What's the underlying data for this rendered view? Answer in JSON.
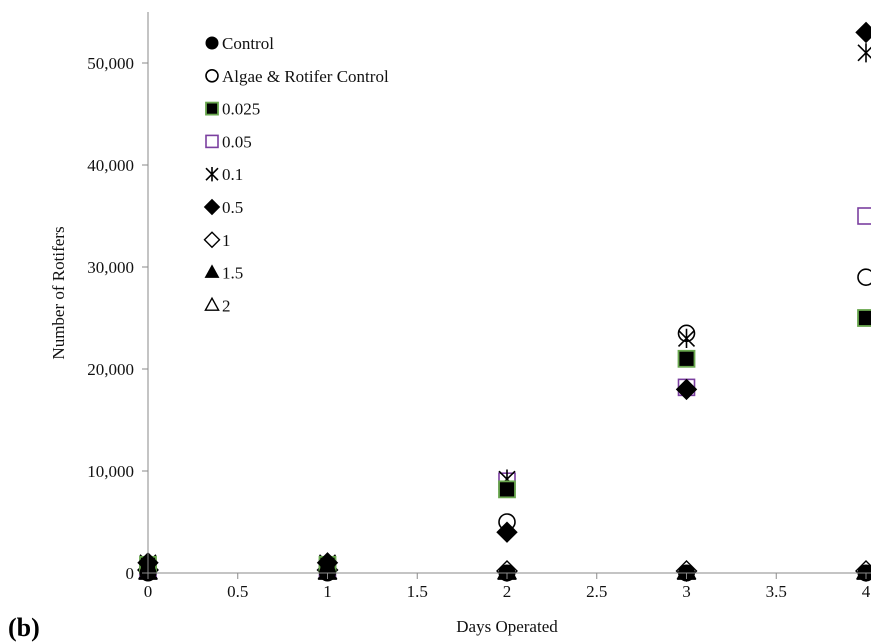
{
  "panel_label": "(b)",
  "chart_data": {
    "type": "scatter",
    "title": "",
    "xlabel": "Days Operated",
    "ylabel": "Number of Rotifers",
    "xlim": [
      0,
      4
    ],
    "ylim": [
      0,
      55000
    ],
    "x_ticks": [
      0,
      0.5,
      1,
      1.5,
      2,
      2.5,
      3,
      3.5,
      4
    ],
    "x_tick_labels": [
      "0",
      "0.5",
      "1",
      "1.5",
      "2",
      "2.5",
      "3",
      "3.5",
      "4"
    ],
    "y_ticks": [
      0,
      10000,
      20000,
      30000,
      40000,
      50000
    ],
    "y_tick_labels": [
      "0",
      "10,000",
      "20,000",
      "30,000",
      "40,000",
      "50,000"
    ],
    "grid": false,
    "legend_position": "top-left",
    "series": [
      {
        "name": "Control",
        "marker": "filled-circle",
        "color": "#000000",
        "points": [
          [
            0,
            0
          ],
          [
            1,
            0
          ],
          [
            2,
            0
          ],
          [
            3,
            0
          ],
          [
            4,
            0
          ]
        ]
      },
      {
        "name": "Algae & Rotifer Control",
        "marker": "open-circle",
        "color": "#000000",
        "points": [
          [
            0,
            500
          ],
          [
            1,
            500
          ],
          [
            2,
            5000
          ],
          [
            3,
            23500
          ],
          [
            4,
            29000
          ]
        ]
      },
      {
        "name": "0.025",
        "marker": "filled-square",
        "color": "#000000",
        "edge": "#6aa84f",
        "points": [
          [
            0,
            800
          ],
          [
            1,
            800
          ],
          [
            2,
            8200
          ],
          [
            3,
            21000
          ],
          [
            4,
            25000
          ]
        ]
      },
      {
        "name": "0.05",
        "marker": "open-square",
        "color": "#7b3fa0",
        "points": [
          [
            0,
            500
          ],
          [
            1,
            500
          ],
          [
            2,
            9000
          ],
          [
            3,
            18200
          ],
          [
            4,
            35000
          ]
        ]
      },
      {
        "name": "0.1",
        "marker": "asterisk",
        "color": "#000000",
        "points": [
          [
            0,
            1000
          ],
          [
            1,
            1000
          ],
          [
            2,
            9200
          ],
          [
            3,
            23000
          ],
          [
            4,
            51000
          ]
        ]
      },
      {
        "name": "0.5",
        "marker": "filled-diamond",
        "color": "#000000",
        "points": [
          [
            0,
            1000
          ],
          [
            1,
            1000
          ],
          [
            2,
            4000
          ],
          [
            3,
            18000
          ],
          [
            4,
            53000
          ]
        ]
      },
      {
        "name": "1",
        "marker": "open-diamond",
        "color": "#000000",
        "points": [
          [
            0,
            300
          ],
          [
            1,
            300
          ],
          [
            2,
            200
          ],
          [
            3,
            200
          ],
          [
            4,
            200
          ]
        ]
      },
      {
        "name": "1.5",
        "marker": "filled-triangle",
        "color": "#000000",
        "points": [
          [
            0,
            0
          ],
          [
            1,
            0
          ],
          [
            2,
            0
          ],
          [
            3,
            0
          ],
          [
            4,
            0
          ]
        ]
      },
      {
        "name": "2",
        "marker": "open-triangle",
        "color": "#000000",
        "points": [
          [
            0,
            100
          ],
          [
            1,
            100
          ],
          [
            2,
            100
          ],
          [
            3,
            100
          ],
          [
            4,
            100
          ]
        ]
      }
    ]
  }
}
